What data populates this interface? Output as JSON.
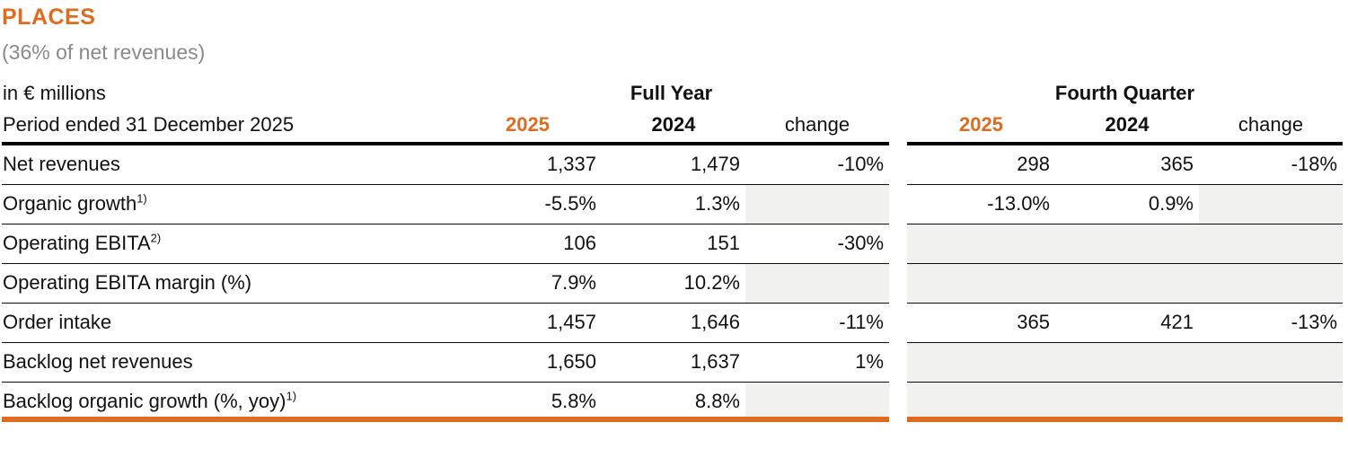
{
  "title": "PLACES",
  "subtitle": "(36% of net revenues)",
  "unit_label": "in € millions",
  "period_label": "Period ended 31 December 2025",
  "colors": {
    "accent": "#E06A1E",
    "shaded_cell": "#F1F1EF"
  },
  "groups": {
    "full_year": "Full Year",
    "fourth_quarter": "Fourth Quarter"
  },
  "columns": {
    "y2025": "2025",
    "y2024": "2024",
    "change": "change"
  },
  "rows": [
    {
      "label": "Net revenues",
      "sup": "",
      "fy_2025": "1,337",
      "fy_2024": "1,479",
      "fy_change": "-10%",
      "q4_2025": "298",
      "q4_2024": "365",
      "q4_change": "-18%"
    },
    {
      "label": "Organic growth",
      "sup": "1)",
      "fy_2025": "-5.5%",
      "fy_2024": "1.3%",
      "fy_change": "",
      "q4_2025": "-13.0%",
      "q4_2024": "0.9%",
      "q4_change": ""
    },
    {
      "label": "Operating EBITA",
      "sup": "2)",
      "fy_2025": "106",
      "fy_2024": "151",
      "fy_change": "-30%",
      "q4_2025": "",
      "q4_2024": "",
      "q4_change": ""
    },
    {
      "label": "Operating EBITA margin (%)",
      "sup": "",
      "fy_2025": "7.9%",
      "fy_2024": "10.2%",
      "fy_change": "",
      "q4_2025": "",
      "q4_2024": "",
      "q4_change": ""
    },
    {
      "label": "Order intake",
      "sup": "",
      "fy_2025": "1,457",
      "fy_2024": "1,646",
      "fy_change": "-11%",
      "q4_2025": "365",
      "q4_2024": "421",
      "q4_change": "-13%"
    },
    {
      "label": "Backlog net revenues",
      "sup": "",
      "fy_2025": "1,650",
      "fy_2024": "1,637",
      "fy_change": "1%",
      "q4_2025": "",
      "q4_2024": "",
      "q4_change": ""
    },
    {
      "label": "Backlog organic growth (%, yoy)",
      "sup": "1)",
      "fy_2025": "5.8%",
      "fy_2024": "8.8%",
      "fy_change": "",
      "q4_2025": "",
      "q4_2024": "",
      "q4_change": ""
    }
  ]
}
